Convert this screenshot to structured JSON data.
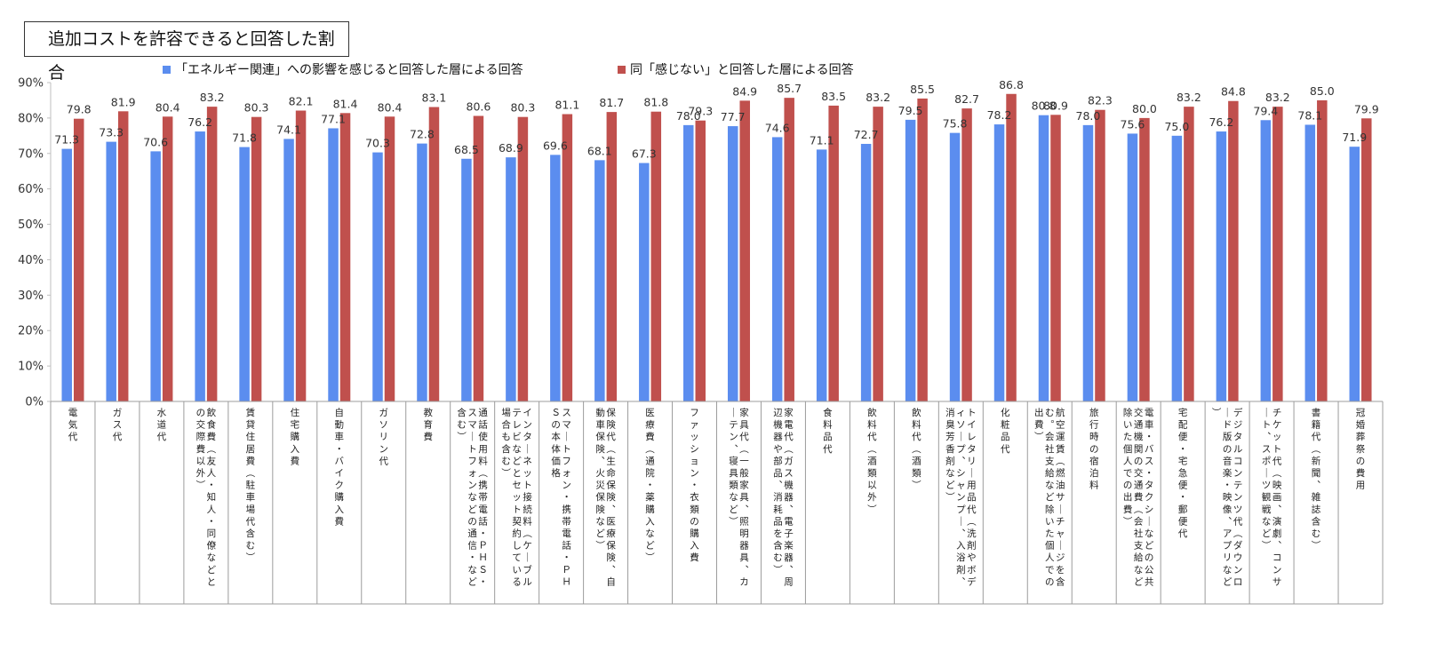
{
  "chart_data": {
    "type": "bar",
    "title": "追加コストを許容できると回答した割合",
    "xlabel": "",
    "ylabel": "",
    "ylim": [
      0,
      90
    ],
    "y_ticks": [
      "0%",
      "10%",
      "20%",
      "30%",
      "40%",
      "50%",
      "60%",
      "70%",
      "80%",
      "90%"
    ],
    "y_tick_values": [
      0,
      10,
      20,
      30,
      40,
      50,
      60,
      70,
      80,
      90
    ],
    "legend_position": "top",
    "grid": false,
    "colors": [
      "#5B8DEF",
      "#C0504D"
    ],
    "categories": [
      "電気代",
      "ガス代",
      "水道代",
      "飲食費（友人・知人・同僚などとの交際費以外）",
      "賃貸住居費（駐車場代含む）",
      "住宅購入費",
      "自動車・バイク購入費",
      "ガソリン代",
      "教育費",
      "通話使用料（携帯電話・ＰＨＳ・スマートフォンなどの通信・など含む）",
      "インターネット接続料（ケーブルテレビなどとセット契約している場合も含む）",
      "スマートフォン・携帯電話・ＰＨＳの本体価格",
      "保険代（生命保険、医療保険、自動車保険、火災保険など）",
      "医療費（通院・薬購入など）",
      "ファッション・衣類の購入費",
      "家具代（一般家具、照明器具、カーテン、寝具類など）",
      "家電代（ガス機器、電子楽器、周辺機器や部品、消耗品を含む）",
      "食料品代",
      "飲料代（酒類以外）",
      "飲料代（酒類）",
      "トイレタリー用品代（洗剤やボディソープ、シャンプー、入浴剤、消臭芳香剤など）",
      "化粧品代",
      "航空運賃（燃油サーチャージを含む。会社支給など除いた個人での出費）",
      "旅行時の宿泊料",
      "電車・バス・タクシーなどの公共交通機関の交通費（会社支給など除いた個人での出費）",
      "宅配便・宅急便・郵便代",
      "デジタルコンテンツ代（ダウンロード版の音楽・映像、アプリなど）",
      "チケット代（映画、演劇、コンサート、スポーツ観戦など）",
      "書籍代（新聞、雑誌含む）",
      "冠婚葬祭の費用"
    ],
    "series": [
      {
        "name": "「エネルギー関連」への影響を感じると回答した層による回答",
        "values": [
          71.3,
          73.3,
          70.6,
          76.2,
          71.8,
          74.1,
          77.1,
          70.3,
          72.8,
          68.5,
          68.9,
          69.6,
          68.1,
          67.3,
          78.0,
          77.7,
          74.6,
          71.1,
          72.7,
          79.5,
          75.8,
          78.2,
          80.8,
          78.0,
          75.6,
          75.0,
          76.2,
          79.4,
          78.1,
          71.9
        ]
      },
      {
        "name": "同「感じない」と回答した層による回答",
        "values": [
          79.8,
          81.9,
          80.4,
          83.2,
          80.3,
          82.1,
          81.4,
          80.4,
          83.1,
          80.6,
          80.3,
          81.1,
          81.7,
          81.8,
          79.3,
          84.9,
          85.7,
          83.5,
          83.2,
          85.5,
          82.7,
          86.8,
          80.9,
          82.3,
          80.0,
          83.2,
          84.8,
          83.2,
          85.0,
          79.9
        ]
      }
    ]
  }
}
